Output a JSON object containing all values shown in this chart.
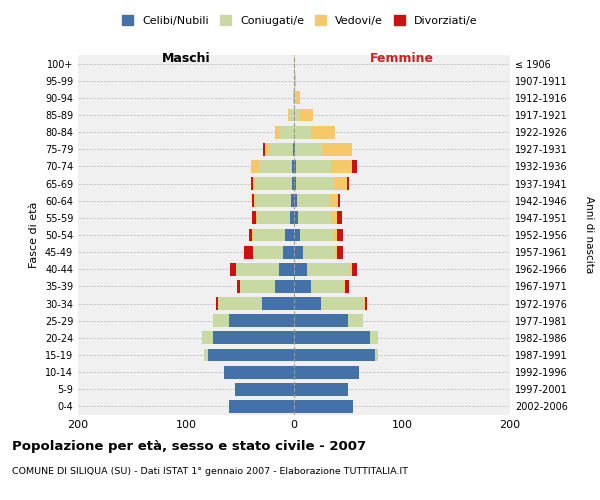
{
  "age_groups": [
    "0-4",
    "5-9",
    "10-14",
    "15-19",
    "20-24",
    "25-29",
    "30-34",
    "35-39",
    "40-44",
    "45-49",
    "50-54",
    "55-59",
    "60-64",
    "65-69",
    "70-74",
    "75-79",
    "80-84",
    "85-89",
    "90-94",
    "95-99",
    "100+"
  ],
  "birth_years": [
    "2002-2006",
    "1997-2001",
    "1992-1996",
    "1987-1991",
    "1982-1986",
    "1977-1981",
    "1972-1976",
    "1967-1971",
    "1962-1966",
    "1957-1961",
    "1952-1956",
    "1947-1951",
    "1942-1946",
    "1937-1941",
    "1932-1936",
    "1927-1931",
    "1922-1926",
    "1917-1921",
    "1912-1916",
    "1907-1911",
    "≤ 1906"
  ],
  "maschi": {
    "celibi": [
      60,
      55,
      65,
      80,
      75,
      60,
      30,
      18,
      14,
      10,
      8,
      4,
      3,
      2,
      2,
      1,
      0,
      0,
      0,
      0,
      0
    ],
    "coniugati": [
      0,
      0,
      0,
      3,
      10,
      15,
      40,
      32,
      40,
      28,
      30,
      30,
      32,
      34,
      30,
      22,
      14,
      4,
      1,
      0,
      0
    ],
    "vedovi": [
      0,
      0,
      0,
      0,
      0,
      0,
      0,
      0,
      0,
      0,
      1,
      1,
      2,
      2,
      8,
      4,
      4,
      2,
      0,
      0,
      0
    ],
    "divorziati": [
      0,
      0,
      0,
      0,
      0,
      0,
      2,
      3,
      5,
      8,
      3,
      4,
      2,
      2,
      0,
      2,
      0,
      0,
      0,
      0,
      0
    ]
  },
  "femmine": {
    "nubili": [
      55,
      50,
      60,
      75,
      70,
      50,
      25,
      16,
      12,
      8,
      6,
      4,
      3,
      2,
      2,
      1,
      0,
      0,
      0,
      0,
      0
    ],
    "coniugate": [
      0,
      0,
      0,
      3,
      8,
      14,
      40,
      30,
      40,
      30,
      30,
      30,
      30,
      35,
      32,
      25,
      16,
      6,
      2,
      1,
      0
    ],
    "vedove": [
      0,
      0,
      0,
      0,
      0,
      0,
      1,
      1,
      2,
      2,
      4,
      6,
      8,
      12,
      20,
      28,
      22,
      12,
      4,
      1,
      1
    ],
    "divorziate": [
      0,
      0,
      0,
      0,
      0,
      0,
      2,
      4,
      4,
      5,
      5,
      4,
      2,
      2,
      4,
      0,
      0,
      0,
      0,
      0,
      0
    ]
  },
  "colors": {
    "celibi": "#4472a8",
    "coniugati": "#c8d9a4",
    "vedovi": "#f5c96a",
    "divorziati": "#cc1111"
  },
  "xlim": 200,
  "title": "Popolazione per età, sesso e stato civile - 2007",
  "subtitle": "COMUNE DI SILIQUA (SU) - Dati ISTAT 1° gennaio 2007 - Elaborazione TUTTITALIA.IT",
  "ylabel_left": "Fasce di età",
  "ylabel_right": "Anni di nascita",
  "xlabel_left": "Maschi",
  "xlabel_right": "Femmine",
  "legend_labels": [
    "Celibi/Nubili",
    "Coniugati/e",
    "Vedovi/e",
    "Divorziati/e"
  ],
  "bg_color": "#f0f0f0",
  "grid_color": "#bbbbbb"
}
